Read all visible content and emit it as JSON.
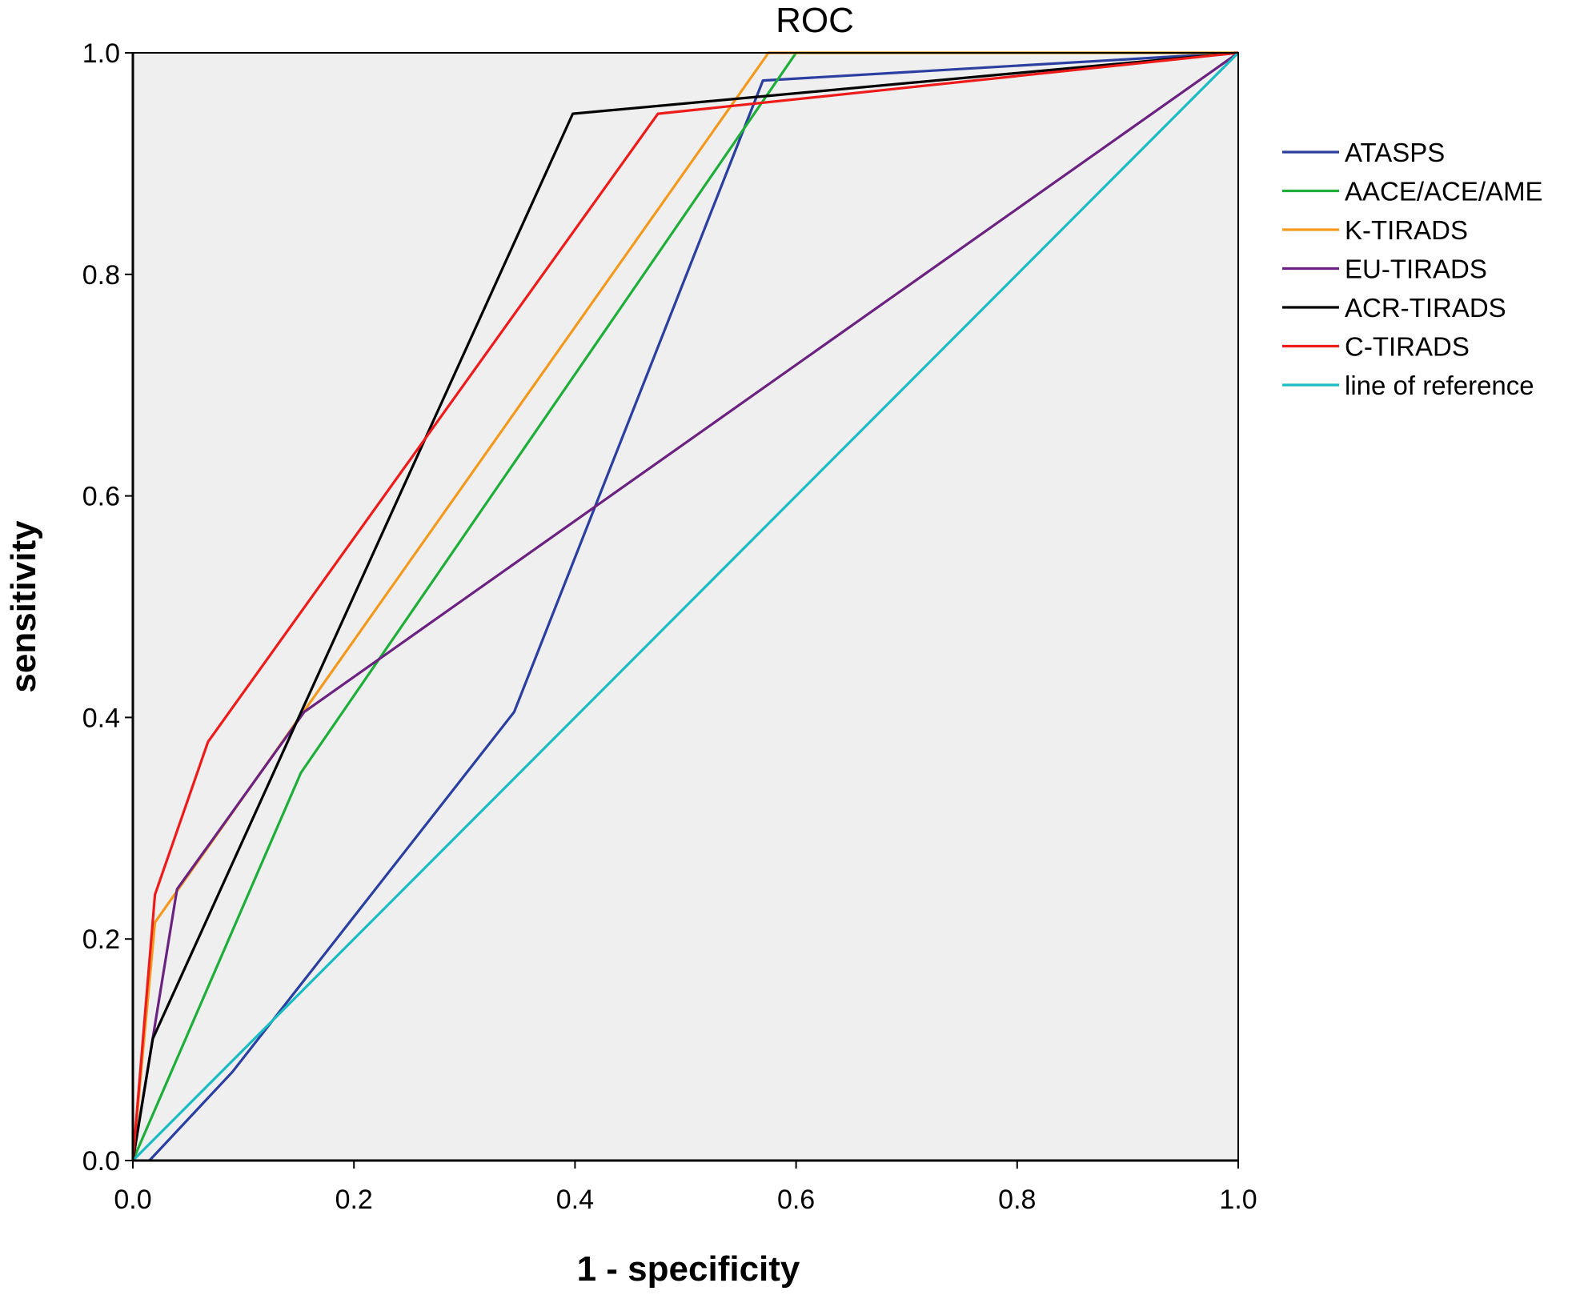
{
  "chart_data": {
    "type": "line",
    "title": "ROC",
    "xlabel": "1 - specificity",
    "ylabel": "sensitivity",
    "xlim": [
      0,
      1
    ],
    "ylim": [
      0,
      1
    ],
    "grid": false,
    "legend_position": "right",
    "x_ticks": [
      "0.0",
      "0.2",
      "0.4",
      "0.6",
      "0.8",
      "1.0"
    ],
    "y_ticks": [
      "0.0",
      "0.2",
      "0.4",
      "0.6",
      "0.8",
      "1.0"
    ],
    "colors": {
      "plot_background": "#efefef"
    },
    "series": [
      {
        "name": "ATASPS",
        "color": "#2a3fa0",
        "points": [
          [
            0.015,
            0
          ],
          [
            0.09,
            0.08
          ],
          [
            0.345,
            0.405
          ],
          [
            0.57,
            0.975
          ],
          [
            1.0,
            1.0
          ]
        ]
      },
      {
        "name": "AACE/ACE/AME",
        "color": "#1fae3a",
        "points": [
          [
            0,
            0
          ],
          [
            0.152,
            0.35
          ],
          [
            0.6,
            1.0
          ],
          [
            1.0,
            1.0
          ]
        ]
      },
      {
        "name": "K-TIRADS",
        "color": "#f39a1e",
        "points": [
          [
            0,
            0
          ],
          [
            0.02,
            0.215
          ],
          [
            0.575,
            1.0
          ],
          [
            1.0,
            1.0
          ]
        ]
      },
      {
        "name": "EU-TIRADS",
        "color": "#6b2280",
        "points": [
          [
            0,
            0
          ],
          [
            0.04,
            0.245
          ],
          [
            0.155,
            0.405
          ],
          [
            1.0,
            1.0
          ]
        ]
      },
      {
        "name": "ACR-TIRADS",
        "color": "#000000",
        "points": [
          [
            0,
            0
          ],
          [
            0.018,
            0.11
          ],
          [
            0.398,
            0.945
          ],
          [
            1.0,
            1.0
          ]
        ]
      },
      {
        "name": "C-TIRADS",
        "color": "#ee1b1b",
        "points": [
          [
            0,
            0
          ],
          [
            0.02,
            0.24
          ],
          [
            0.068,
            0.378
          ],
          [
            0.475,
            0.945
          ],
          [
            1.0,
            1.0
          ]
        ]
      },
      {
        "name": "line of reference",
        "color": "#1bbcc3",
        "points": [
          [
            0,
            0
          ],
          [
            1.0,
            1.0
          ]
        ]
      }
    ]
  }
}
